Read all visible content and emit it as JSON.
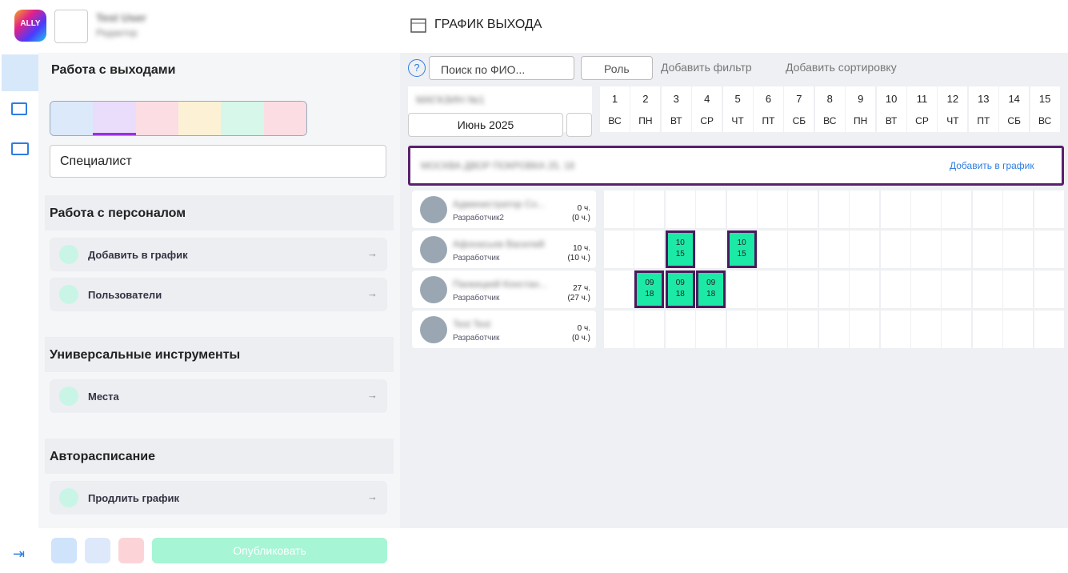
{
  "header": {
    "page_title": "ГРАФИК ВЫХОДА",
    "user_name": "Test User",
    "user_role": "Редактор"
  },
  "sidebar": {
    "title": "Работа с выходами",
    "dropdown": "Специалист",
    "sections": [
      {
        "title": "Работа с персоналом",
        "items": [
          "Добавить в график",
          "Пользователи"
        ]
      },
      {
        "title": "Универсальные инструменты",
        "items": [
          "Места"
        ]
      },
      {
        "title": "Авторасписание",
        "items": [
          "Продлить график"
        ]
      }
    ],
    "publish": "Опубликовать"
  },
  "toolbar": {
    "search": "Поиск по ФИО...",
    "role": "Роль",
    "add_filter": "Добавить фильтр",
    "add_sort": "Добавить сортировку"
  },
  "calendar": {
    "store": "МАГАЗИН №1",
    "month": "Июнь 2025",
    "days": [
      {
        "num": "1",
        "dow": "ВС"
      },
      {
        "num": "2",
        "dow": "ПН"
      },
      {
        "num": "3",
        "dow": "ВТ"
      },
      {
        "num": "4",
        "dow": "СР"
      },
      {
        "num": "5",
        "dow": "ЧТ"
      },
      {
        "num": "6",
        "dow": "ПТ"
      },
      {
        "num": "7",
        "dow": "СБ"
      },
      {
        "num": "8",
        "dow": "ВС"
      },
      {
        "num": "9",
        "dow": "ПН"
      },
      {
        "num": "10",
        "dow": "ВТ"
      },
      {
        "num": "11",
        "dow": "СР"
      },
      {
        "num": "12",
        "dow": "ЧТ"
      },
      {
        "num": "13",
        "dow": "ПТ"
      },
      {
        "num": "14",
        "dow": "СБ"
      },
      {
        "num": "15",
        "dow": "ВС"
      }
    ]
  },
  "group": {
    "name": "МОСКВА ДВОР ПОКРОВКА 25, 18",
    "add": "Добавить в график"
  },
  "employees": [
    {
      "name": "Администратор Со...",
      "role": "Разработчик2",
      "hours": "0 ч.",
      "planned": "(0 ч.)",
      "cells": [
        null,
        null,
        null,
        null,
        null,
        null,
        null,
        null,
        null,
        null,
        null,
        null,
        null,
        null,
        null
      ]
    },
    {
      "name": "Афонасьев Василий",
      "role": "Разработчик",
      "hours": "10 ч.",
      "planned": "(10 ч.)",
      "cells": [
        null,
        null,
        {
          "start": "10",
          "end": "15"
        },
        null,
        {
          "start": "10",
          "end": "15"
        },
        null,
        null,
        null,
        null,
        null,
        null,
        null,
        null,
        null,
        null
      ]
    },
    {
      "name": "Панкицкий Констан...",
      "role": "Разработчик",
      "hours": "27 ч.",
      "planned": "(27 ч.)",
      "cells": [
        null,
        {
          "start": "09",
          "end": "18"
        },
        {
          "start": "09",
          "end": "18"
        },
        {
          "start": "09",
          "end": "18"
        },
        null,
        null,
        null,
        null,
        null,
        null,
        null,
        null,
        null,
        null,
        null
      ]
    },
    {
      "name": "Test Test",
      "role": "Разработчик",
      "hours": "0 ч.",
      "planned": "(0 ч.)",
      "cells": [
        null,
        null,
        null,
        null,
        null,
        null,
        null,
        null,
        null,
        null,
        null,
        null,
        null,
        null,
        null
      ]
    }
  ]
}
